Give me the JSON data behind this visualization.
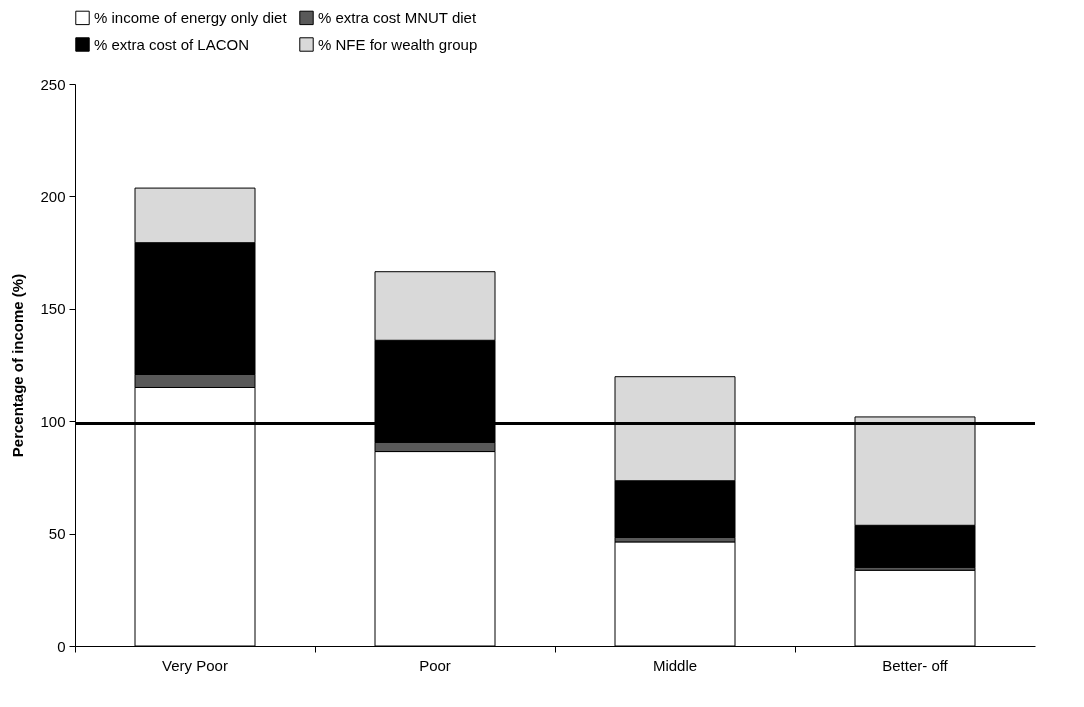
{
  "chart_data": {
    "type": "bar",
    "stacked": true,
    "ylabel": "Percentage of income (%)",
    "categories": [
      "Very Poor",
      "Poor",
      "Middle",
      "Better- off"
    ],
    "series": [
      {
        "name": "% income of energy only diet",
        "color": "#ffffff",
        "values": [
          115,
          86.5,
          46.3,
          33.7
        ]
      },
      {
        "name": "% extra cost MNUT diet",
        "color": "#595959",
        "values": [
          5.8,
          4.1,
          2,
          1.3
        ]
      },
      {
        "name": "% extra cost of LACON",
        "color": "#000000",
        "values": [
          58.6,
          45.4,
          25.2,
          18.7
        ]
      },
      {
        "name": "% NFE for wealth group",
        "color": "#d9d9d9",
        "values": [
          24.3,
          30.5,
          46.3,
          48.2
        ]
      }
    ],
    "ylim": [
      0,
      250
    ],
    "yticks": [
      0,
      50,
      100,
      150,
      200,
      250
    ],
    "ref_lines": [
      {
        "axis": "y",
        "value": 99,
        "color": "#000000"
      }
    ],
    "legend": "top",
    "grid": false
  }
}
